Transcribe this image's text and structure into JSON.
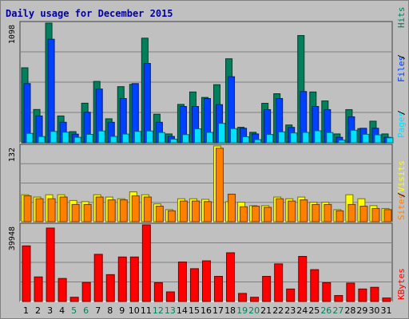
{
  "title": "Daily usage for December 2015",
  "colors": {
    "hits": "#00805c",
    "files": "#0040ff",
    "pages": "#00e0ff",
    "visits": "#ff8000",
    "sites": "#ffff00",
    "kbytes": "#ff0000",
    "title": "#0000a0",
    "weekend_day": "#00805c",
    "weekday_day": "#000000"
  },
  "chart_data": [
    {
      "type": "bar",
      "panel": "hits-files-pages",
      "y_label_max": "1098",
      "axis_label": [
        "Pages",
        "Files",
        "Hits"
      ],
      "ylim": [
        0,
        1098
      ],
      "grid": true,
      "categories": [
        "1",
        "2",
        "3",
        "4",
        "5",
        "6",
        "7",
        "8",
        "9",
        "10",
        "11",
        "12",
        "13",
        "14",
        "15",
        "16",
        "17",
        "18",
        "19",
        "20",
        "21",
        "22",
        "23",
        "24",
        "25",
        "26",
        "27",
        "28",
        "29",
        "30",
        "31"
      ],
      "series": [
        {
          "name": "Hits",
          "values": [
            688,
            305,
            1098,
            246,
            102,
            363,
            563,
            220,
            515,
            536,
            960,
            262,
            81,
            352,
            466,
            416,
            533,
            771,
            142,
            96,
            362,
            450,
            163,
            984,
            466,
            384,
            81,
            304,
            130,
            198,
            81
          ]
        },
        {
          "name": "Files",
          "values": [
            543,
            246,
            950,
            188,
            79,
            280,
            493,
            188,
            406,
            543,
            728,
            188,
            58,
            333,
            333,
            406,
            350,
            606,
            133,
            81,
            304,
            406,
            141,
            470,
            333,
            304,
            50,
            238,
            133,
            133,
            50
          ]
        },
        {
          "name": "Pages",
          "values": [
            86,
            57,
            104,
            97,
            50,
            77,
            108,
            58,
            80,
            104,
            108,
            94,
            33,
            75,
            128,
            95,
            178,
            130,
            55,
            29,
            76,
            100,
            90,
            95,
            110,
            94,
            24,
            115,
            78,
            73,
            46
          ]
        }
      ]
    },
    {
      "type": "bar",
      "panel": "visits-sites",
      "y_label_max": "132",
      "axis_label": [
        "Sites",
        "Visits"
      ],
      "ylim": [
        0,
        132
      ],
      "grid": true,
      "categories": [
        "1",
        "2",
        "3",
        "4",
        "5",
        "6",
        "7",
        "8",
        "9",
        "10",
        "11",
        "12",
        "13",
        "14",
        "15",
        "16",
        "17",
        "18",
        "19",
        "20",
        "21",
        "22",
        "23",
        "24",
        "25",
        "26",
        "27",
        "28",
        "29",
        "30",
        "31"
      ],
      "series": [
        {
          "name": "Sites",
          "values": [
            47,
            43,
            47,
            47,
            37,
            35,
            47,
            43,
            40,
            52,
            47,
            31,
            21,
            40,
            40,
            39,
            132,
            35,
            34,
            28,
            28,
            43,
            40,
            43,
            34,
            34,
            21,
            47,
            40,
            28,
            23
          ]
        },
        {
          "name": "Visits",
          "values": [
            45,
            40,
            40,
            43,
            30,
            30,
            43,
            38,
            38,
            45,
            43,
            27,
            19,
            36,
            36,
            35,
            128,
            48,
            26,
            27,
            25,
            40,
            36,
            38,
            30,
            30,
            19,
            30,
            27,
            23,
            21
          ]
        }
      ]
    },
    {
      "type": "bar",
      "panel": "kbytes",
      "y_label_max": "39948",
      "axis_label": [
        "KBytes"
      ],
      "ylim": [
        0,
        39948
      ],
      "grid": true,
      "categories": [
        "1",
        "2",
        "3",
        "4",
        "5",
        "6",
        "7",
        "8",
        "9",
        "10",
        "11",
        "12",
        "13",
        "14",
        "15",
        "16",
        "17",
        "18",
        "19",
        "20",
        "21",
        "22",
        "23",
        "24",
        "25",
        "26",
        "27",
        "28",
        "29",
        "30",
        "31"
      ],
      "series": [
        {
          "name": "KBytes",
          "values": [
            29000,
            12800,
            38300,
            12000,
            2200,
            9900,
            24600,
            14000,
            23200,
            23200,
            39948,
            9800,
            5000,
            20600,
            17100,
            21200,
            13100,
            25400,
            4200,
            2200,
            13100,
            19600,
            6500,
            23500,
            16600,
            9800,
            3100,
            9600,
            6500,
            7400,
            1800
          ]
        }
      ]
    }
  ]
}
